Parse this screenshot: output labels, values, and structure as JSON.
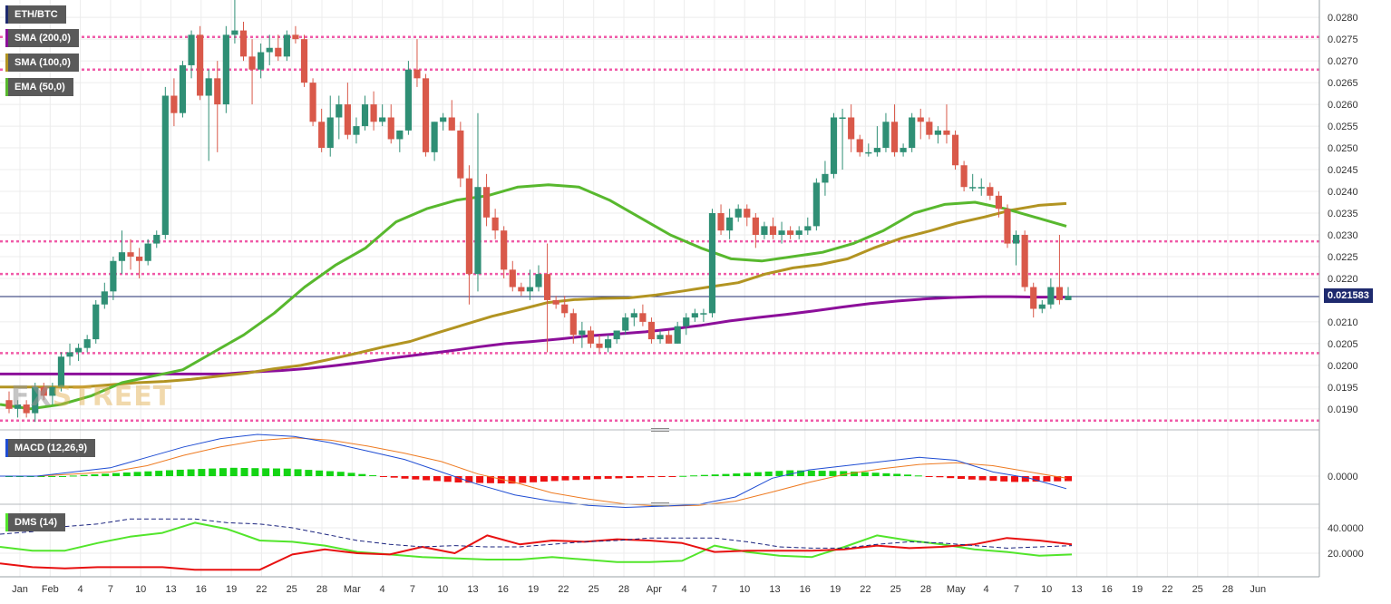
{
  "legend": {
    "symbol": "ETH/BTC",
    "sma200": "SMA (200,0)",
    "sma100": "SMA (100,0)",
    "ema50": "EMA (50,0)",
    "macd": "MACD (12,26,9)",
    "dms": "DMS (14)"
  },
  "current_price_label": "0.021583",
  "watermark": {
    "part1": "FX",
    "part2": "STREET"
  },
  "colors": {
    "up": "#2f8f75",
    "down": "#d9594a",
    "sma200": "#8c0f9a",
    "sma100": "#b29422",
    "ema50": "#58b82e",
    "resistance": "#f05aa8",
    "macd_line": "#1f4dd3",
    "macd_signal": "#ee7b22",
    "hist_pos": "#14d414",
    "hist_neg": "#ee1111",
    "di_plus": "#52e52b",
    "di_minus": "#e81111",
    "adx": "#1a237e",
    "price_line": "#1e2a6e"
  },
  "chart_data": [
    {
      "type": "candlestick",
      "title": "ETH/BTC",
      "ylim": [
        0.0186,
        0.0284
      ],
      "y_ticks": [
        "0.0280",
        "0.0275",
        "0.0270",
        "0.0265",
        "0.0260",
        "0.0255",
        "0.0250",
        "0.0245",
        "0.0240",
        "0.0235",
        "0.0230",
        "0.0225",
        "0.0220",
        "0.0210",
        "0.0205",
        "0.0200",
        "0.0195",
        "0.0190"
      ],
      "x_tick_labels": [
        "Jan",
        "Feb",
        "4",
        "7",
        "10",
        "13",
        "16",
        "19",
        "22",
        "25",
        "28",
        "Mar",
        "4",
        "7",
        "10",
        "13",
        "16",
        "19",
        "22",
        "25",
        "28",
        "Apr",
        "4",
        "7",
        "10",
        "13",
        "16",
        "19",
        "22",
        "25",
        "28",
        "May",
        "4",
        "7",
        "10",
        "13",
        "16",
        "19",
        "22",
        "25",
        "28",
        "Jun"
      ],
      "current_price": 0.021583,
      "horizontal_levels": [
        0.02755,
        0.0268,
        0.02285,
        0.0221,
        0.02028,
        0.01873
      ],
      "candles_ohlc": [
        [
          0.0192,
          0.0194,
          0.0189,
          0.019
        ],
        [
          0.019,
          0.0192,
          0.0188,
          0.0191
        ],
        [
          0.0191,
          0.0192,
          0.0188,
          0.0189
        ],
        [
          0.0189,
          0.0196,
          0.0187,
          0.0195
        ],
        [
          0.0195,
          0.0196,
          0.0192,
          0.0193
        ],
        [
          0.0193,
          0.0196,
          0.0191,
          0.0195
        ],
        [
          0.0195,
          0.0203,
          0.0194,
          0.0202
        ],
        [
          0.0202,
          0.0205,
          0.02,
          0.0203
        ],
        [
          0.0203,
          0.0205,
          0.0201,
          0.0204
        ],
        [
          0.0204,
          0.0207,
          0.0203,
          0.0206
        ],
        [
          0.0206,
          0.0215,
          0.0205,
          0.0214
        ],
        [
          0.0214,
          0.0219,
          0.0213,
          0.0217
        ],
        [
          0.0217,
          0.0225,
          0.0215,
          0.0224
        ],
        [
          0.0224,
          0.0231,
          0.0221,
          0.0226
        ],
        [
          0.0226,
          0.0229,
          0.0222,
          0.0225
        ],
        [
          0.0225,
          0.0227,
          0.022,
          0.0224
        ],
        [
          0.0224,
          0.0229,
          0.0223,
          0.0228
        ],
        [
          0.0228,
          0.0231,
          0.0227,
          0.023
        ],
        [
          0.023,
          0.0264,
          0.0229,
          0.0262
        ],
        [
          0.0262,
          0.0266,
          0.0255,
          0.0258
        ],
        [
          0.0258,
          0.027,
          0.0257,
          0.0269
        ],
        [
          0.0269,
          0.0277,
          0.0266,
          0.0276
        ],
        [
          0.0276,
          0.0278,
          0.0261,
          0.0262
        ],
        [
          0.0262,
          0.0268,
          0.0247,
          0.0266
        ],
        [
          0.0266,
          0.027,
          0.0249,
          0.026
        ],
        [
          0.026,
          0.0278,
          0.0258,
          0.0276
        ],
        [
          0.0276,
          0.0284,
          0.0274,
          0.0277
        ],
        [
          0.0277,
          0.0279,
          0.027,
          0.0271
        ],
        [
          0.0271,
          0.0275,
          0.026,
          0.0268
        ],
        [
          0.0268,
          0.0274,
          0.0266,
          0.0272
        ],
        [
          0.0272,
          0.0276,
          0.0269,
          0.0273
        ],
        [
          0.0273,
          0.0276,
          0.027,
          0.0271
        ],
        [
          0.0271,
          0.0277,
          0.027,
          0.0276
        ],
        [
          0.0276,
          0.0278,
          0.0274,
          0.0275
        ],
        [
          0.0275,
          0.0276,
          0.0264,
          0.0265
        ],
        [
          0.0265,
          0.0266,
          0.0255,
          0.0256
        ],
        [
          0.0256,
          0.0259,
          0.0249,
          0.025
        ],
        [
          0.025,
          0.0262,
          0.0248,
          0.0257
        ],
        [
          0.0257,
          0.0262,
          0.0252,
          0.026
        ],
        [
          0.026,
          0.0265,
          0.0252,
          0.0253
        ],
        [
          0.0253,
          0.0257,
          0.0251,
          0.0255
        ],
        [
          0.0255,
          0.0262,
          0.0254,
          0.026
        ],
        [
          0.026,
          0.0263,
          0.0254,
          0.0256
        ],
        [
          0.0256,
          0.026,
          0.0255,
          0.0257
        ],
        [
          0.0257,
          0.026,
          0.0251,
          0.0252
        ],
        [
          0.0252,
          0.0254,
          0.0249,
          0.0254
        ],
        [
          0.0254,
          0.027,
          0.0253,
          0.0268
        ],
        [
          0.0268,
          0.0275,
          0.0264,
          0.0266
        ],
        [
          0.0266,
          0.0267,
          0.0248,
          0.0249
        ],
        [
          0.0249,
          0.0256,
          0.0247,
          0.0256
        ],
        [
          0.0256,
          0.0258,
          0.0254,
          0.0257
        ],
        [
          0.0257,
          0.0261,
          0.0254,
          0.0254
        ],
        [
          0.0254,
          0.0256,
          0.0241,
          0.0243
        ],
        [
          0.0243,
          0.0246,
          0.0214,
          0.0221
        ],
        [
          0.0221,
          0.0258,
          0.0217,
          0.0241
        ],
        [
          0.0241,
          0.0244,
          0.0232,
          0.0234
        ],
        [
          0.0234,
          0.0236,
          0.0229,
          0.0231
        ],
        [
          0.0231,
          0.0232,
          0.022,
          0.0222
        ],
        [
          0.0222,
          0.0224,
          0.0217,
          0.0218
        ],
        [
          0.0218,
          0.0219,
          0.0216,
          0.0217
        ],
        [
          0.0217,
          0.0222,
          0.0215,
          0.0218
        ],
        [
          0.0218,
          0.0223,
          0.0217,
          0.0221
        ],
        [
          0.0221,
          0.0228,
          0.0203,
          0.0215
        ],
        [
          0.0215,
          0.0216,
          0.0213,
          0.0214
        ],
        [
          0.0214,
          0.0216,
          0.0211,
          0.0212
        ],
        [
          0.0212,
          0.0213,
          0.0205,
          0.0207
        ],
        [
          0.0207,
          0.021,
          0.0204,
          0.0208
        ],
        [
          0.0208,
          0.0209,
          0.0204,
          0.0205
        ],
        [
          0.0205,
          0.0207,
          0.0203,
          0.0204
        ],
        [
          0.0204,
          0.0207,
          0.0203,
          0.0206
        ],
        [
          0.0206,
          0.0208,
          0.0205,
          0.0208
        ],
        [
          0.0208,
          0.0212,
          0.0207,
          0.0211
        ],
        [
          0.0211,
          0.0213,
          0.0209,
          0.0212
        ],
        [
          0.0212,
          0.0214,
          0.0209,
          0.021
        ],
        [
          0.021,
          0.0211,
          0.0205,
          0.0206
        ],
        [
          0.0206,
          0.0208,
          0.0205,
          0.0207
        ],
        [
          0.0207,
          0.0208,
          0.0205,
          0.0205
        ],
        [
          0.0205,
          0.021,
          0.0205,
          0.0209
        ],
        [
          0.0209,
          0.0212,
          0.0207,
          0.0211
        ],
        [
          0.0211,
          0.0213,
          0.021,
          0.0212
        ],
        [
          0.0212,
          0.0213,
          0.021,
          0.0212
        ],
        [
          0.0212,
          0.0236,
          0.0211,
          0.0235
        ],
        [
          0.0235,
          0.0237,
          0.023,
          0.0231
        ],
        [
          0.0231,
          0.0236,
          0.0229,
          0.0234
        ],
        [
          0.0234,
          0.0237,
          0.0233,
          0.0236
        ],
        [
          0.0236,
          0.0237,
          0.0232,
          0.0234
        ],
        [
          0.0234,
          0.0235,
          0.0227,
          0.023
        ],
        [
          0.023,
          0.0233,
          0.0229,
          0.0232
        ],
        [
          0.0232,
          0.0234,
          0.0229,
          0.023
        ],
        [
          0.023,
          0.0233,
          0.0228,
          0.0231
        ],
        [
          0.0231,
          0.0232,
          0.0229,
          0.023
        ],
        [
          0.023,
          0.0232,
          0.0229,
          0.0231
        ],
        [
          0.0231,
          0.0234,
          0.023,
          0.0232
        ],
        [
          0.0232,
          0.0243,
          0.0231,
          0.0242
        ],
        [
          0.0242,
          0.0247,
          0.0239,
          0.0244
        ],
        [
          0.0244,
          0.0258,
          0.0243,
          0.0257
        ],
        [
          0.0257,
          0.0259,
          0.0245,
          0.0257
        ],
        [
          0.0257,
          0.026,
          0.0249,
          0.0252
        ],
        [
          0.0252,
          0.0253,
          0.0248,
          0.0249
        ],
        [
          0.0249,
          0.0251,
          0.0248,
          0.0249
        ],
        [
          0.0249,
          0.0255,
          0.0248,
          0.025
        ],
        [
          0.025,
          0.0258,
          0.0249,
          0.0256
        ],
        [
          0.0256,
          0.026,
          0.0248,
          0.0249
        ],
        [
          0.0249,
          0.0251,
          0.0248,
          0.025
        ],
        [
          0.025,
          0.0258,
          0.0249,
          0.0257
        ],
        [
          0.0257,
          0.0259,
          0.0252,
          0.0256
        ],
        [
          0.0256,
          0.0257,
          0.0252,
          0.0253
        ],
        [
          0.0253,
          0.0255,
          0.0251,
          0.0254
        ],
        [
          0.0254,
          0.026,
          0.0251,
          0.0253
        ],
        [
          0.0253,
          0.0254,
          0.0245,
          0.0246
        ],
        [
          0.0246,
          0.0247,
          0.024,
          0.0241
        ],
        [
          0.0241,
          0.0244,
          0.024,
          0.0241
        ],
        [
          0.0241,
          0.0243,
          0.0239,
          0.0241
        ],
        [
          0.0241,
          0.0242,
          0.0238,
          0.0239
        ],
        [
          0.0239,
          0.024,
          0.0234,
          0.0236
        ],
        [
          0.0236,
          0.0237,
          0.0227,
          0.0228
        ],
        [
          0.0228,
          0.0231,
          0.0223,
          0.023
        ],
        [
          0.023,
          0.0231,
          0.0217,
          0.0218
        ],
        [
          0.0218,
          0.0219,
          0.0211,
          0.0213
        ],
        [
          0.0213,
          0.0215,
          0.0212,
          0.0214
        ],
        [
          0.0214,
          0.022,
          0.0213,
          0.0218
        ],
        [
          0.0218,
          0.023,
          0.0214,
          0.0215
        ],
        [
          0.0215,
          0.0218,
          0.0215,
          0.0216
        ]
      ],
      "overlays": [
        {
          "name": "SMA (200,0)",
          "values": [
            0.0198,
            0.0198,
            0.0198,
            0.0198,
            0.0198,
            0.0198,
            0.0198,
            0.0198,
            0.0198,
            0.01985,
            0.01988,
            0.01993,
            0.02,
            0.02008,
            0.02017,
            0.02025,
            0.02033,
            0.02042,
            0.0205,
            0.02055,
            0.02061,
            0.02068,
            0.02072,
            0.02077,
            0.02084,
            0.02092,
            0.02102,
            0.0211,
            0.02117,
            0.02125,
            0.02134,
            0.02142,
            0.02148,
            0.02153,
            0.02156,
            0.02158,
            0.02158,
            0.02157,
            0.02157
          ]
        },
        {
          "name": "SMA (100,0)",
          "values": [
            0.0195,
            0.0195,
            0.0195,
            0.0195,
            0.01955,
            0.0196,
            0.01963,
            0.01968,
            0.01975,
            0.01982,
            0.01992,
            0.02,
            0.02013,
            0.02027,
            0.02042,
            0.02055,
            0.02075,
            0.02094,
            0.02113,
            0.02128,
            0.02144,
            0.02151,
            0.02154,
            0.02155,
            0.02162,
            0.02171,
            0.02181,
            0.0219,
            0.0221,
            0.02224,
            0.02232,
            0.02245,
            0.02271,
            0.02293,
            0.02309,
            0.02327,
            0.02341,
            0.02357,
            0.02368,
            0.02372
          ]
        },
        {
          "name": "EMA (50,0)",
          "values": [
            0.0191,
            0.019,
            0.0191,
            0.0193,
            0.0196,
            0.01975,
            0.0199,
            0.0203,
            0.0207,
            0.0212,
            0.0218,
            0.0223,
            0.0227,
            0.0233,
            0.0236,
            0.0238,
            0.0239,
            0.0241,
            0.02415,
            0.0241,
            0.0238,
            0.0234,
            0.023,
            0.0227,
            0.02245,
            0.0224,
            0.0225,
            0.0226,
            0.0228,
            0.0231,
            0.0235,
            0.0237,
            0.02375,
            0.0236,
            0.0234,
            0.0232
          ]
        }
      ]
    },
    {
      "type": "line",
      "title": "MACD (12,26,9)",
      "y_ticks": [
        "0.0000"
      ],
      "series": [
        {
          "name": "macd",
          "values": [
            0.0,
            0.0,
            0.1,
            0.2,
            0.45,
            0.7,
            0.9,
            1.0,
            0.95,
            0.8,
            0.6,
            0.4,
            0.1,
            -0.2,
            -0.45,
            -0.6,
            -0.7,
            -0.75,
            -0.72,
            -0.68,
            -0.5,
            -0.05,
            0.15,
            0.25,
            0.35,
            0.45,
            0.38,
            0.1,
            -0.05,
            -0.3
          ]
        },
        {
          "name": "signal",
          "values": [
            0.0,
            0.0,
            0.05,
            0.1,
            0.25,
            0.5,
            0.7,
            0.85,
            0.92,
            0.86,
            0.72,
            0.55,
            0.35,
            0.05,
            -0.15,
            -0.4,
            -0.55,
            -0.67,
            -0.72,
            -0.7,
            -0.6,
            -0.38,
            -0.15,
            0.05,
            0.18,
            0.28,
            0.32,
            0.25,
            0.1,
            -0.05
          ]
        },
        {
          "name": "histogram",
          "values": [
            0.0,
            0.0,
            0.08,
            0.15,
            0.2,
            0.18,
            0.1,
            -0.05,
            -0.15,
            -0.18,
            -0.1,
            -0.05,
            0.0,
            0.06,
            0.14,
            0.12,
            0.05,
            -0.06,
            -0.14,
            -0.12
          ]
        }
      ]
    },
    {
      "type": "line",
      "title": "DMS (14)",
      "y_ticks": [
        "40.0000",
        "20.0000"
      ],
      "series": [
        {
          "name": "DI+",
          "values": [
            25,
            22,
            22,
            28,
            33,
            36,
            44,
            39,
            30,
            29,
            26,
            21,
            19,
            17,
            16,
            15,
            15,
            17,
            15,
            13,
            13,
            14,
            26,
            21,
            18,
            17,
            25,
            34,
            30,
            27,
            23,
            21,
            18,
            19
          ]
        },
        {
          "name": "DI-",
          "values": [
            12,
            9,
            8,
            9,
            9,
            9,
            7,
            7,
            7,
            19,
            23,
            20,
            19,
            25,
            20,
            34,
            27,
            30,
            29,
            31,
            30,
            28,
            21,
            22,
            22,
            22,
            23,
            26,
            24,
            25,
            27,
            32,
            30,
            27
          ]
        },
        {
          "name": "ADX",
          "values": [
            35,
            37,
            41,
            43,
            47,
            47,
            47,
            44,
            43,
            40,
            35,
            30,
            27,
            25,
            26,
            25,
            25,
            27,
            29,
            30,
            32,
            32,
            32,
            29,
            25,
            24,
            24,
            27,
            29,
            28,
            26,
            24,
            25,
            26
          ]
        }
      ]
    }
  ]
}
